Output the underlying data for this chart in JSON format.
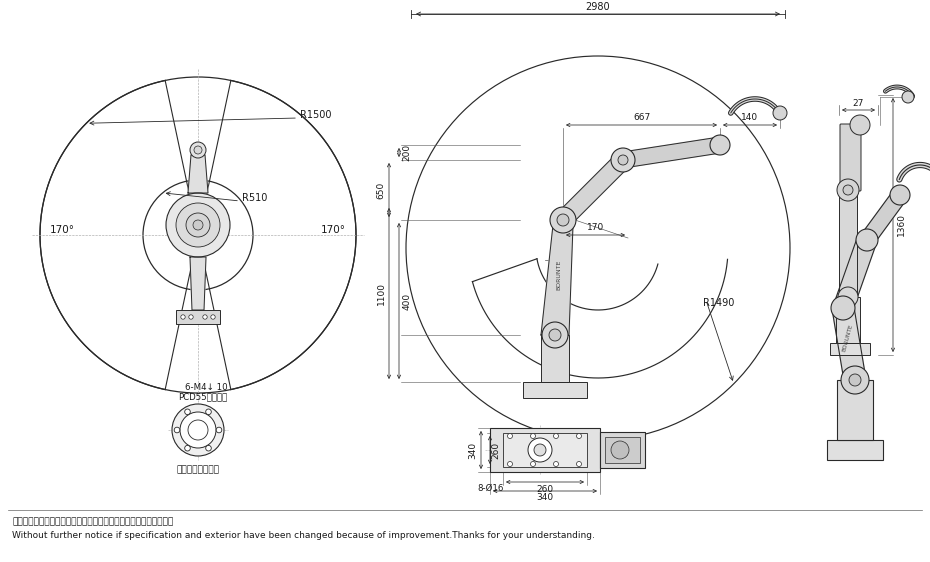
{
  "bg_color": "#ffffff",
  "line_color": "#2a2a2a",
  "dim_color": "#2a2a2a",
  "text_color": "#1a1a1a",
  "figsize": [
    9.3,
    5.62
  ],
  "dpi": 100,
  "footer_cn": "因改良等原因，规格及外观有所变更时，不再另行通知，敬请谅解。",
  "footer_en": "Without further notice if specification and exterior have been changed because of improvement.Thanks for your understanding.",
  "top_label": "2980",
  "dim_667": "667",
  "dim_140": "140",
  "dim_200": "200",
  "dim_170": "170",
  "dim_650": "650",
  "dim_400": "400",
  "dim_1100": "1100",
  "dim_R1490": "R1490",
  "dim_R1500": "R1500",
  "dim_R510": "R510",
  "dim_170deg_left": "170°",
  "dim_170deg_right": "170°",
  "dim_27": "27",
  "dim_1360": "1360",
  "dim_340a": "340",
  "dim_260a": "260",
  "dim_260b": "260",
  "dim_340b": "340",
  "dim_8phi16": "8-Ø16",
  "dim_6M4": "6-M4↓ 10",
  "dim_PCD55": "PCD55（均布）",
  "label_flange": "末端法兰安装尺寸"
}
